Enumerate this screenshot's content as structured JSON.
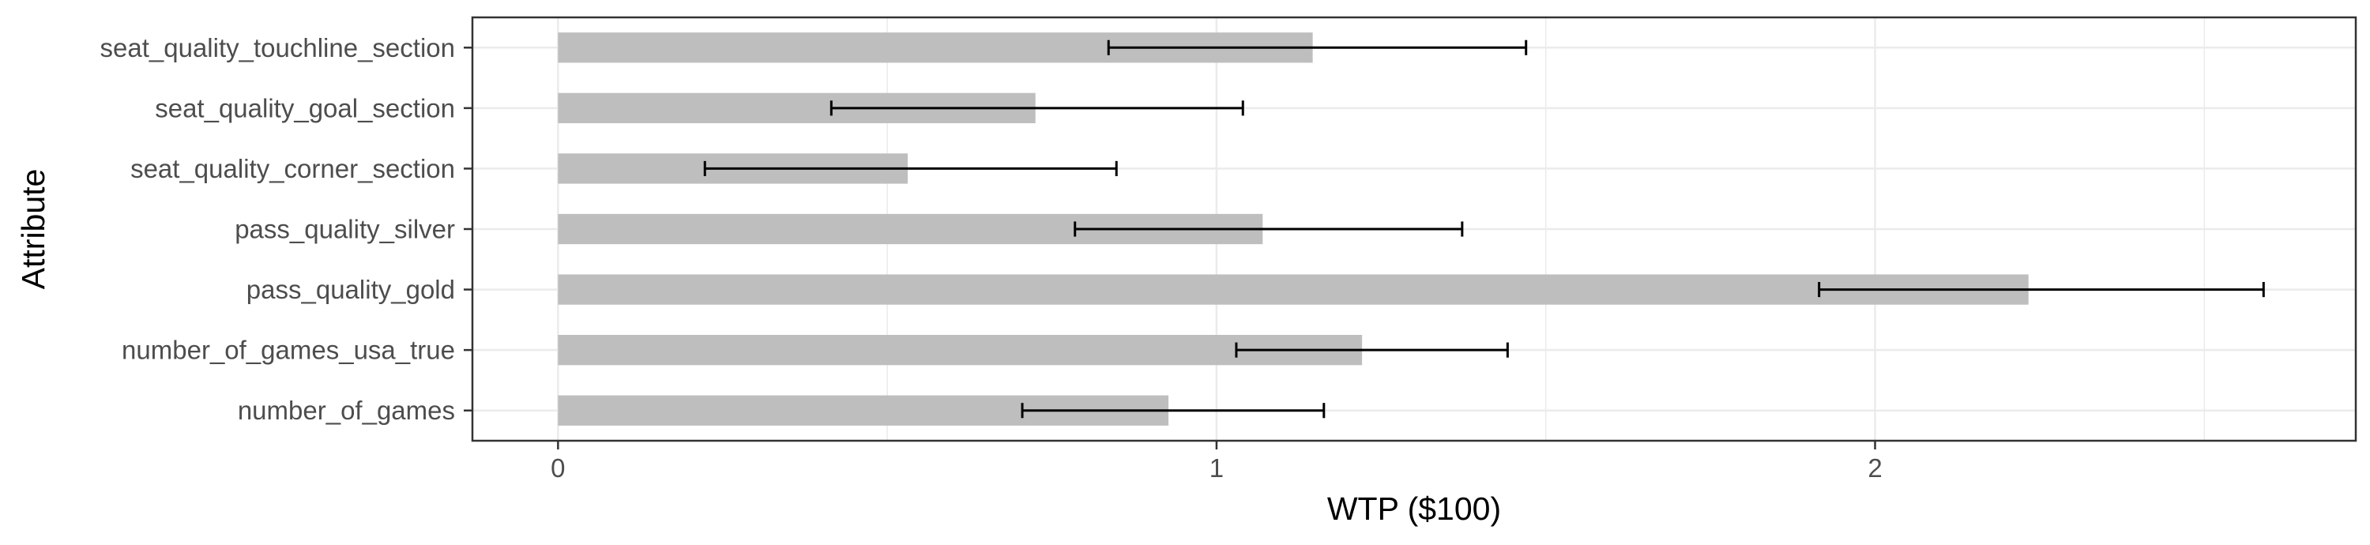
{
  "chart_data": {
    "type": "bar",
    "orientation": "horizontal",
    "xlabel": "WTP ($100)",
    "ylabel": "Attribute",
    "xlim": [
      -0.13,
      2.73
    ],
    "xticks": [
      0,
      1,
      2
    ],
    "xtick_labels": [
      "0",
      "1",
      "2"
    ],
    "grid": true,
    "legend": "none",
    "categories": [
      "seat_quality_touchline_section",
      "seat_quality_goal_section",
      "seat_quality_corner_section",
      "pass_quality_silver",
      "pass_quality_gold",
      "number_of_games_usa_true",
      "number_of_games"
    ],
    "values": [
      1.146,
      0.725,
      0.531,
      1.07,
      2.233,
      1.221,
      0.927
    ],
    "error_low": [
      0.836,
      0.415,
      0.223,
      0.785,
      1.915,
      1.03,
      0.705
    ],
    "error_high": [
      1.47,
      1.04,
      0.848,
      1.373,
      2.59,
      1.442,
      1.163
    ],
    "colors": {
      "bar": "#bebebe",
      "error": "#000000",
      "grid": "#ebebeb",
      "panel_border": "#333333"
    }
  }
}
